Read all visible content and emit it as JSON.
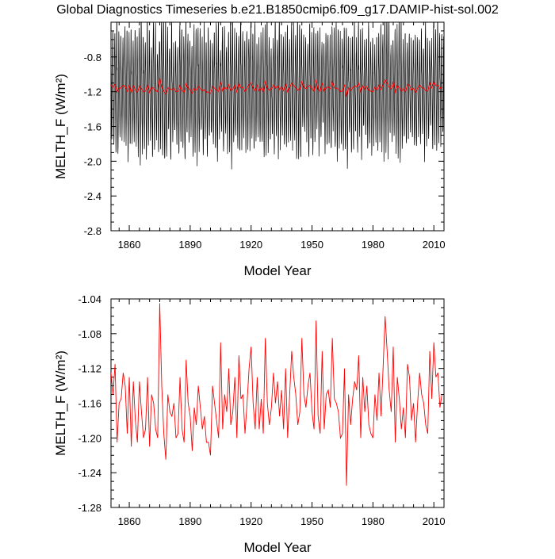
{
  "figure": {
    "title": "Global Diagnostics Timeseries b.e21.B1850cmip6.f09_g17.DAMIP-hist-sol.002"
  },
  "colors": {
    "monthly_series": "#000000",
    "annual_series": "#ff0000",
    "frame": "#000000",
    "background": "#ffffff"
  },
  "chart_data": [
    {
      "type": "line",
      "xlabel": "Model Year",
      "ylabel": "MELTH_F (W/m²)",
      "xlim": [
        1851,
        2015
      ],
      "ylim": [
        -2.8,
        -0.4
      ],
      "xticks": [
        1860,
        1890,
        1920,
        1950,
        1980,
        2010
      ],
      "yticks": [
        -2.8,
        -2.4,
        -2.0,
        -1.6,
        -1.2,
        -0.8
      ],
      "grid": false,
      "series": [
        {
          "role": "monthly",
          "color": "#000000",
          "x_start": 1851,
          "x_step": 0.0833,
          "seasonal_cycle": [
            -1.04,
            -1.13,
            -1.31,
            -1.52,
            -1.72,
            -1.9,
            -1.82,
            -1.55,
            -1.22,
            -0.95,
            -0.76,
            -0.73
          ],
          "annual_envelope_min_approx": [
            -2.3,
            -1.8
          ],
          "annual_envelope_max_approx": [
            -0.63,
            -0.55
          ]
        },
        {
          "role": "annual",
          "color": "#ff0000",
          "x": "years 1851-2014",
          "values_ref": "annual_mean"
        }
      ]
    },
    {
      "type": "line",
      "xlabel": "Model Year",
      "ylabel": "MELTH_F (W/m²)",
      "xlim": [
        1851,
        2015
      ],
      "ylim": [
        -1.28,
        -1.04
      ],
      "xticks": [
        1860,
        1890,
        1920,
        1950,
        1980,
        2010
      ],
      "yticks": [
        -1.28,
        -1.24,
        -1.2,
        -1.16,
        -1.12,
        -1.08,
        -1.04
      ],
      "grid": false,
      "series": [
        {
          "role": "annual",
          "color": "#ff0000",
          "x_start": 1851,
          "x_step": 1,
          "values": [
            -1.125,
            -1.15,
            -1.115,
            -1.205,
            -1.16,
            -1.155,
            -1.125,
            -1.14,
            -1.195,
            -1.13,
            -1.21,
            -1.135,
            -1.18,
            -1.205,
            -1.135,
            -1.17,
            -1.2,
            -1.19,
            -1.13,
            -1.21,
            -1.15,
            -1.16,
            -1.19,
            -1.2,
            -1.045,
            -1.14,
            -1.195,
            -1.225,
            -1.15,
            -1.17,
            -1.175,
            -1.16,
            -1.2,
            -1.195,
            -1.13,
            -1.19,
            -1.205,
            -1.11,
            -1.16,
            -1.175,
            -1.215,
            -1.165,
            -1.185,
            -1.14,
            -1.165,
            -1.19,
            -1.175,
            -1.205,
            -1.205,
            -1.22,
            -1.14,
            -1.16,
            -1.18,
            -1.2,
            -1.09,
            -1.19,
            -1.15,
            -1.17,
            -1.12,
            -1.185,
            -1.17,
            -1.13,
            -1.2,
            -1.105,
            -1.155,
            -1.15,
            -1.195,
            -1.16,
            -1.12,
            -1.095,
            -1.16,
            -1.19,
            -1.13,
            -1.19,
            -1.155,
            -1.195,
            -1.085,
            -1.16,
            -1.185,
            -1.165,
            -1.125,
            -1.16,
            -1.135,
            -1.175,
            -1.145,
            -1.19,
            -1.12,
            -1.2,
            -1.15,
            -1.1,
            -1.13,
            -1.15,
            -1.185,
            -1.17,
            -1.085,
            -1.15,
            -1.165,
            -1.14,
            -1.125,
            -1.17,
            -1.19,
            -1.065,
            -1.175,
            -1.195,
            -1.1,
            -1.19,
            -1.15,
            -1.145,
            -1.165,
            -1.085,
            -1.155,
            -1.16,
            -1.17,
            -1.2,
            -1.195,
            -1.12,
            -1.255,
            -1.15,
            -1.185,
            -1.155,
            -1.135,
            -1.145,
            -1.105,
            -1.2,
            -1.13,
            -1.17,
            -1.14,
            -1.185,
            -1.195,
            -1.2,
            -1.15,
            -1.18,
            -1.125,
            -1.175,
            -1.12,
            -1.06,
            -1.1,
            -1.145,
            -1.17,
            -1.095,
            -1.205,
            -1.13,
            -1.155,
            -1.19,
            -1.165,
            -1.2,
            -1.115,
            -1.13,
            -1.18,
            -1.16,
            -1.205,
            -1.16,
            -1.125,
            -1.15,
            -1.16,
            -1.185,
            -1.195,
            -1.1,
            -1.155,
            -1.09,
            -1.13,
            -1.125,
            -1.165,
            -1.15
          ]
        }
      ]
    }
  ]
}
